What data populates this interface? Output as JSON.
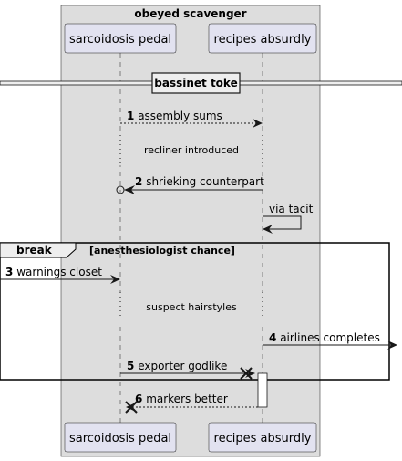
{
  "box": {
    "title": "obeyed scavenger"
  },
  "participants": [
    {
      "name": "sarcoidosis pedal"
    },
    {
      "name": "recipes absurdly"
    }
  ],
  "divider": {
    "label": "bassinet toke"
  },
  "messages": [
    {
      "num": "1",
      "text": "assembly sums"
    },
    {
      "num": "2",
      "text": "shrieking counterpart"
    },
    {
      "num": "",
      "text": "via tacit"
    },
    {
      "num": "3",
      "text": "warnings closet"
    },
    {
      "num": "4",
      "text": "airlines completes"
    },
    {
      "num": "5",
      "text": "exporter godlike"
    },
    {
      "num": "6",
      "text": "markers better"
    }
  ],
  "delays": [
    {
      "text": "recliner introduced"
    },
    {
      "text": "suspect hairstyles"
    }
  ],
  "fragment": {
    "keyword": "break",
    "condition": "[anesthesiologist chance]"
  },
  "colors": {
    "box_fill": "#dddddd",
    "participant_fill": "#e2e2f0",
    "participant_border": "#181818",
    "line": "#181818"
  }
}
